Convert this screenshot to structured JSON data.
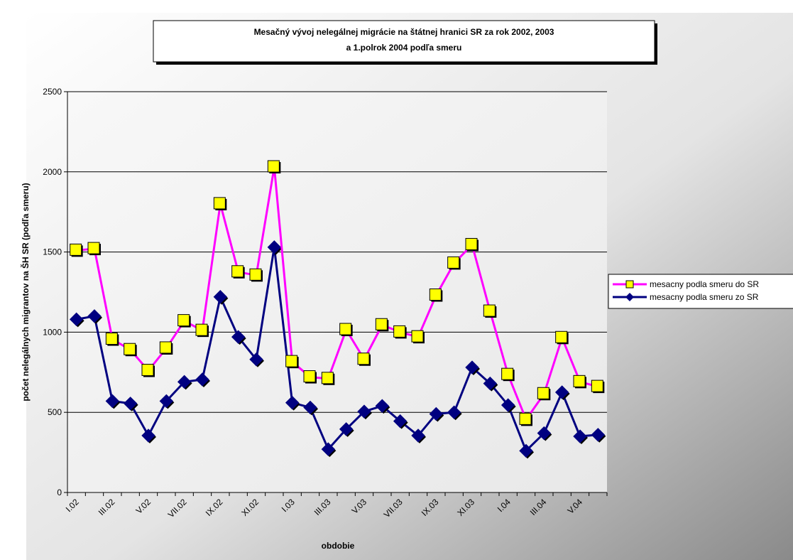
{
  "chart_data": {
    "type": "line",
    "title": [
      "Mesačný vývoj nelegálnej migrácie na štátnej hranici SR za rok 2002, 2003",
      "a 1.polrok 2004 podľa smeru"
    ],
    "x_label": "obdobie",
    "y_label": "počet nelegálnych migrantov na ŠH SR (podľa smeru)",
    "categories": [
      "I.02",
      null,
      "III.02",
      null,
      "V.02",
      null,
      "VII.02",
      null,
      "IX.02",
      null,
      "XI.02",
      null,
      "I.03",
      null,
      "III.03",
      null,
      "V.03",
      null,
      "VII.03",
      null,
      "IX.03",
      null,
      "XI.03",
      null,
      "I.04",
      null,
      "III.04",
      null,
      "V.04",
      null
    ],
    "series": [
      {
        "name": "mesacny podla smeru do SR",
        "color": "#ff00ff",
        "marker": "square",
        "marker_color": "#ffff00",
        "values": [
          1510,
          1520,
          955,
          890,
          760,
          900,
          1070,
          1010,
          1800,
          1375,
          1355,
          2030,
          815,
          720,
          710,
          1015,
          830,
          1045,
          1000,
          970,
          1230,
          1430,
          1545,
          1130,
          735,
          455,
          615,
          965,
          690,
          660
        ]
      },
      {
        "name": "mesacny podla smeru zo SR",
        "color": "#000080",
        "marker": "diamond",
        "marker_color": "#000080",
        "values": [
          1080,
          1100,
          570,
          555,
          355,
          570,
          690,
          705,
          1220,
          970,
          830,
          1530,
          560,
          530,
          270,
          395,
          505,
          540,
          445,
          355,
          490,
          500,
          780,
          680,
          545,
          260,
          370,
          625,
          350,
          360
        ]
      }
    ],
    "ylim": [
      0,
      2500
    ],
    "yticks": [
      0,
      500,
      1000,
      1500,
      2000,
      2500
    ],
    "grid": true,
    "legend": "right"
  }
}
